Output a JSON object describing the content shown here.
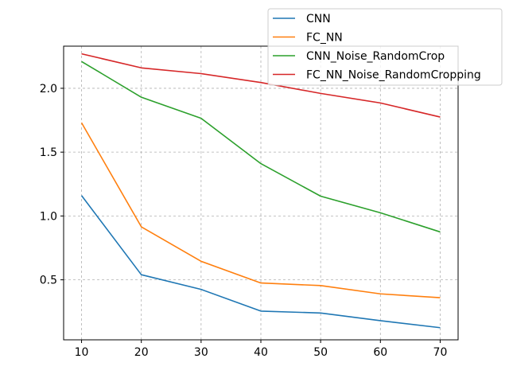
{
  "chart_data": {
    "type": "line",
    "title": "",
    "xlabel": "",
    "ylabel": "",
    "x": [
      10,
      20,
      30,
      40,
      50,
      60,
      70
    ],
    "xlim": [
      7,
      73
    ],
    "ylim": [
      0.03,
      2.33
    ],
    "xticks": [
      10,
      20,
      30,
      40,
      50,
      60,
      70
    ],
    "yticks": [
      0.5,
      1.0,
      1.5,
      2.0
    ],
    "xtick_labels": [
      "10",
      "20",
      "30",
      "40",
      "50",
      "60",
      "70"
    ],
    "ytick_labels": [
      "0.5",
      "1.0",
      "1.5",
      "2.0"
    ],
    "grid": true,
    "legend_position": "top-right",
    "series": [
      {
        "name": "CNN",
        "color": "#1f77b4",
        "values": [
          1.16,
          0.54,
          0.425,
          0.255,
          0.24,
          0.18,
          0.125
        ]
      },
      {
        "name": "FC_NN",
        "color": "#ff7f0e",
        "values": [
          1.73,
          0.915,
          0.645,
          0.475,
          0.455,
          0.39,
          0.36
        ]
      },
      {
        "name": "CNN_Noise_RandomCrop",
        "color": "#2ca02c",
        "values": [
          2.21,
          1.93,
          1.765,
          1.41,
          1.155,
          1.025,
          0.875
        ]
      },
      {
        "name": "FC_NN_Noise_RandomCropping",
        "color": "#d62728",
        "values": [
          2.27,
          2.16,
          2.115,
          2.045,
          1.96,
          1.885,
          1.775
        ]
      }
    ]
  }
}
